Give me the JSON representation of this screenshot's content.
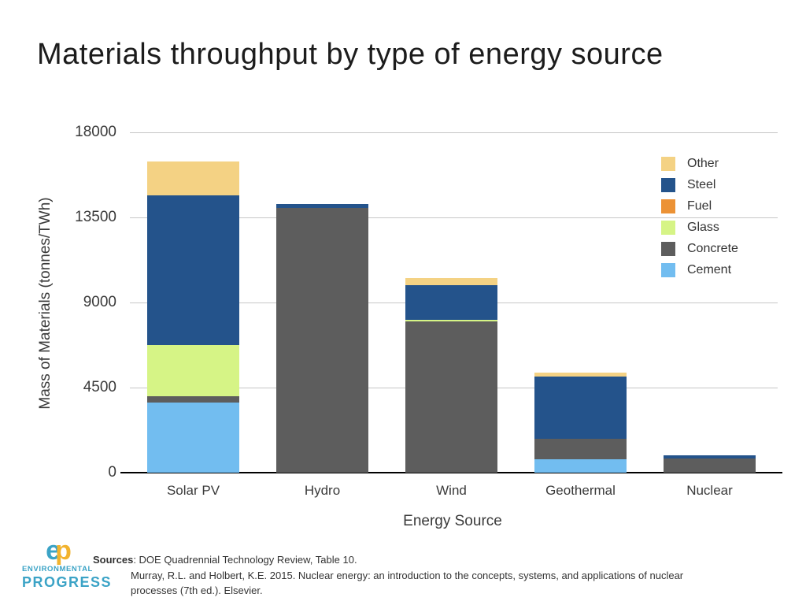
{
  "title": "Materials throughput by type of energy source",
  "chart_data": {
    "type": "bar",
    "stacked": true,
    "title": "Materials throughput by type of energy source",
    "xlabel": "Energy Source",
    "ylabel": "Mass of Materials (tonnes/TWh)",
    "ylim": [
      0,
      18000
    ],
    "yticks": [
      0,
      4500,
      9000,
      13500,
      18000
    ],
    "grid": true,
    "legend_position": "top-right",
    "legend_order": [
      "Other",
      "Steel",
      "Fuel",
      "Glass",
      "Concrete",
      "Cement"
    ],
    "categories": [
      "Solar PV",
      "Hydro",
      "Wind",
      "Geothermal",
      "Nuclear"
    ],
    "series": [
      {
        "name": "Cement",
        "color": "#72bdf0",
        "values": [
          3700,
          0,
          0,
          700,
          0
        ]
      },
      {
        "name": "Concrete",
        "color": "#5d5d5d",
        "values": [
          350,
          14000,
          8000,
          1100,
          760
        ]
      },
      {
        "name": "Glass",
        "color": "#d6f486",
        "values": [
          2700,
          0,
          100,
          0,
          0
        ]
      },
      {
        "name": "Fuel",
        "color": "#ec9235",
        "values": [
          0,
          0,
          0,
          0,
          0
        ]
      },
      {
        "name": "Steel",
        "color": "#24538b",
        "values": [
          7900,
          200,
          1800,
          3300,
          160
        ]
      },
      {
        "name": "Other",
        "color": "#f4d284",
        "values": [
          1800,
          0,
          400,
          200,
          0
        ]
      }
    ],
    "totals": [
      16450,
      14200,
      10300,
      5300,
      920
    ]
  },
  "colors": {
    "gridline": "#c6c6c6",
    "axis": "#000000",
    "tick_text": "#3a3a3a",
    "title_text": "#1c1c1c",
    "logo_blue": "#3ba3c6",
    "logo_yellow": "#f2b32e"
  },
  "logo": {
    "monogram_e": "e",
    "monogram_p": "p",
    "line1": "ENVIRONMENTAL",
    "line2": "PROGRESS"
  },
  "footer": {
    "sources_bold": "Sources",
    "line1": ": DOE Quadrennial Technology Review, Table 10.",
    "line2": "Murray, R.L. and Holbert, K.E. 2015. Nuclear energy: an introduction to the concepts, systems, and applications of nuclear",
    "line3": "processes (7th ed.). Elsevier."
  }
}
